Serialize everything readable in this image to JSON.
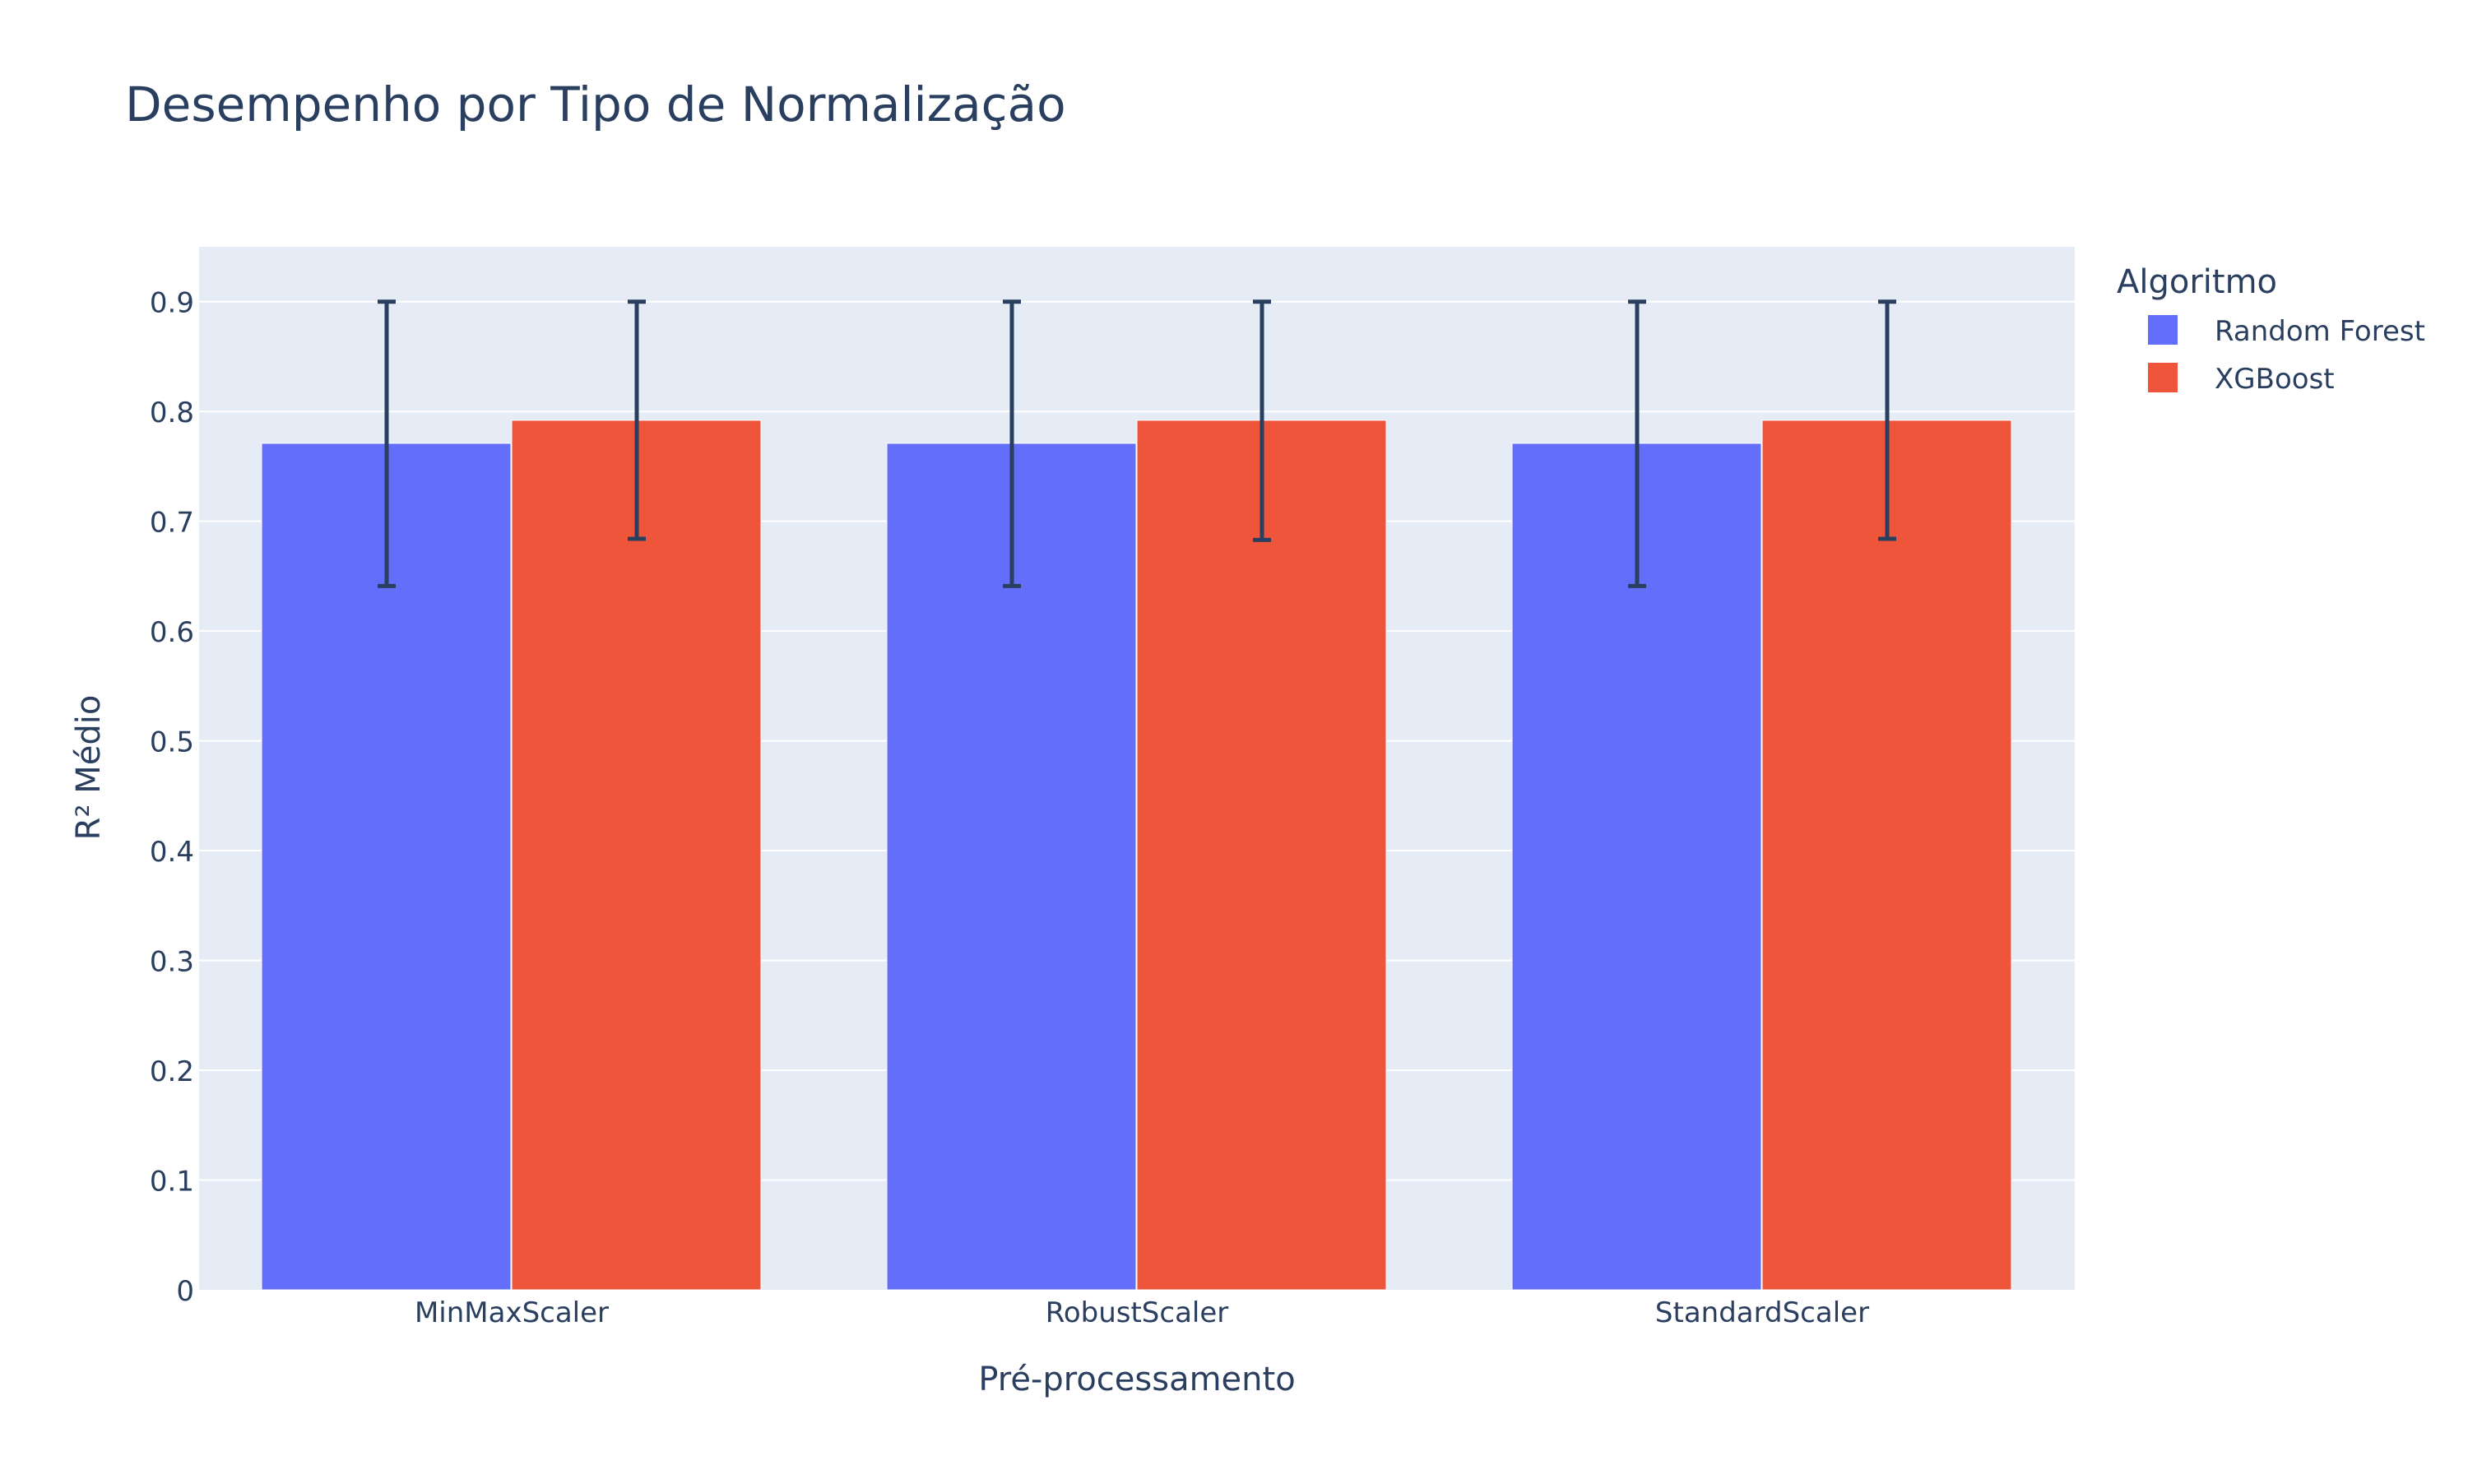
{
  "chart_data": {
    "type": "bar",
    "title": "Desempenho por Tipo de Normalização",
    "xlabel": "Pré-processamento",
    "ylabel": "R² Médio",
    "categories": [
      "MinMaxScaler",
      "RobustScaler",
      "StandardScaler"
    ],
    "ylim": [
      0,
      0.95
    ],
    "yticks": [
      0,
      0.1,
      0.2,
      0.3,
      0.4,
      0.5,
      0.6,
      0.7,
      0.8,
      0.9
    ],
    "ytick_labels": [
      "0",
      "0.1",
      "0.2",
      "0.3",
      "0.4",
      "0.5",
      "0.6",
      "0.7",
      "0.8",
      "0.9"
    ],
    "grid": true,
    "legend": {
      "title": "Algoritmo",
      "placement": "top-right, outside plot"
    },
    "series": [
      {
        "name": "Random Forest",
        "color": "#636efa",
        "values": [
          0.771,
          0.771,
          0.771
        ],
        "error_low": [
          0.641,
          0.641,
          0.641
        ],
        "error_high": [
          0.9,
          0.9,
          0.9
        ]
      },
      {
        "name": "XGBoost",
        "color": "#ef553b",
        "values": [
          0.792,
          0.792,
          0.792
        ],
        "error_low": [
          0.684,
          0.683,
          0.684
        ],
        "error_high": [
          0.9,
          0.9,
          0.9
        ]
      }
    ],
    "colors": {
      "plot_background": "#e5ecf6",
      "grid": "#ffffff",
      "text": "#2a3f5f",
      "error_bar": "#2a3f5f"
    }
  }
}
